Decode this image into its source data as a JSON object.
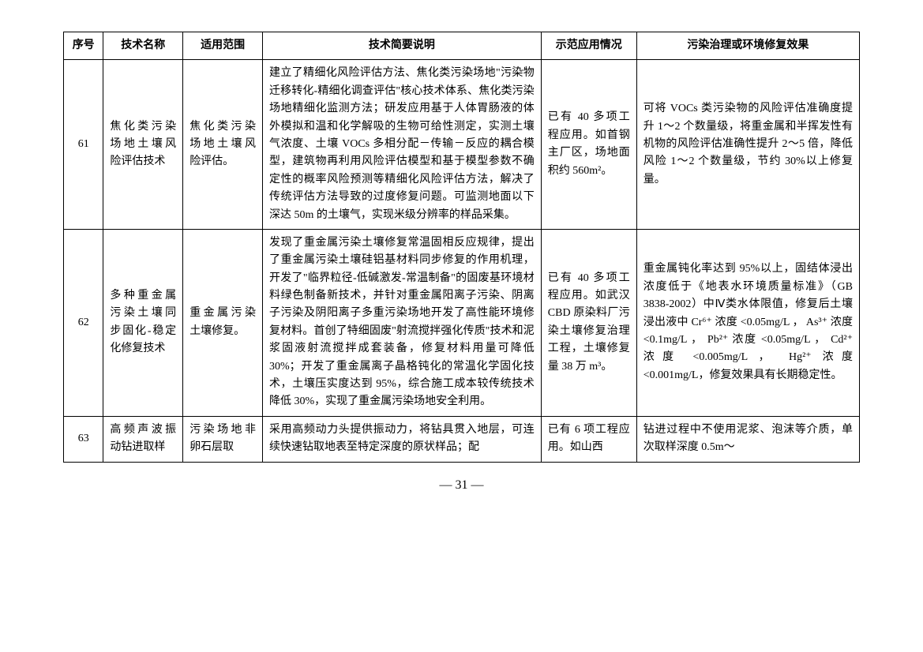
{
  "headers": {
    "seq": "序号",
    "name": "技术名称",
    "scope": "适用范围",
    "desc": "技术简要说明",
    "app": "示范应用情况",
    "effect": "污染治理或环境修复效果"
  },
  "rows": [
    {
      "seq": "61",
      "name": "焦化类污染场地土壤风险评估技术",
      "scope": "焦化类污染场地土壤风险评估。",
      "desc": "建立了精细化风险评估方法、焦化类污染场地\"污染物迁移转化-精细化调查评估\"核心技术体系、焦化类污染场地精细化监测方法；研发应用基于人体胃肠液的体外模拟和温和化学解吸的生物可给性测定，实测土壤气浓度、土壤 VOCs 多相分配－传输－反应的耦合模型，建筑物再利用风险评估模型和基于模型参数不确定性的概率风险预测等精细化风险评估方法，解决了传统评估方法导致的过度修复问题。可监测地面以下深达 50m 的土壤气，实现米级分辨率的样品采集。",
      "app": "已有 40 多项工程应用。如首钢主厂区，场地面积约 560m²。",
      "effect": "可将 VOCs 类污染物的风险评估准确度提升 1～2 个数量级，将重金属和半挥发性有机物的风险评估准确性提升 2～5 倍，降低风险 1～2 个数量级，节约 30%以上修复量。"
    },
    {
      "seq": "62",
      "name": "多种重金属污染土壤同步固化-稳定化修复技术",
      "scope": "重金属污染土壤修复。",
      "desc": "发现了重金属污染土壤修复常温固相反应规律，提出了重金属污染土壤硅铝基材料同步修复的作用机理，开发了\"临界粒径-低碱激发-常温制备\"的固废基环境材料绿色制备新技术，并针对重金属阳离子污染、阴离子污染及阴阳离子多重污染场地开发了高性能环境修复材料。首创了特细固废\"射流搅拌强化传质\"技术和泥浆固液射流搅拌成套装备，修复材料用量可降低 30%；开发了重金属离子晶格钝化的常温化学固化技术，土壤压实度达到 95%，综合施工成本较传统技术降低 30%，实现了重金属污染场地安全利用。",
      "app": "已有 40 多项工程应用。如武汉 CBD 原染料厂污染土壤修复治理工程，土壤修复量 38 万 m³。",
      "effect": "重金属钝化率达到 95%以上，固结体浸出浓度低于《地表水环境质量标准》（GB 3838-2002）中Ⅳ类水体限值，修复后土壤浸出液中 Cr⁶⁺ 浓度 <0.05mg/L ， As³⁺ 浓度 <0.1mg/L ， Pb²⁺ 浓度 <0.05mg/L ， Cd²⁺ 浓度 <0.005mg/L ， Hg²⁺ 浓度 <0.001mg/L，修复效果具有长期稳定性。"
    },
    {
      "seq": "63",
      "name": "高频声波振动钻进取样",
      "scope": "污染场地非卵石层取",
      "desc": "采用高频动力头提供振动力，将钻具贯入地层，可连续快速钻取地表至特定深度的原状样品；配",
      "app": "已有 6 项工程应用。如山西",
      "effect": "钻进过程中不使用泥浆、泡沫等介质，单次取样深度 0.5m～"
    }
  ],
  "page_number": "— 31 —"
}
